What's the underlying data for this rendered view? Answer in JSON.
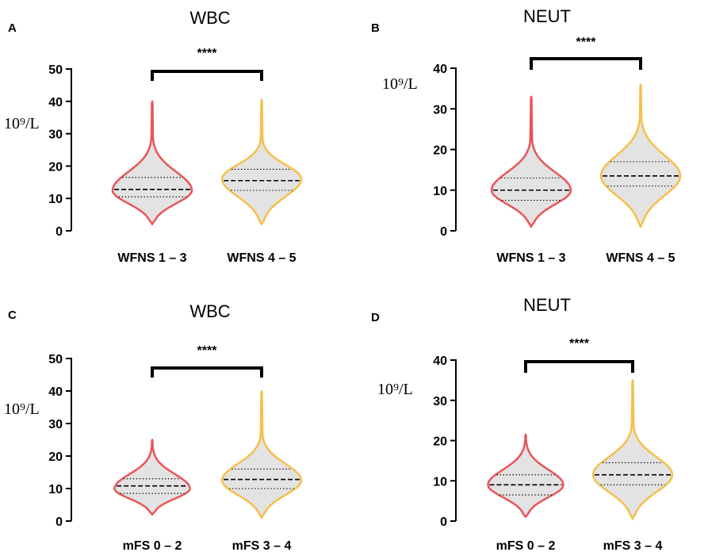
{
  "chart_data": [
    {
      "panel": "A",
      "title": "WBC",
      "type": "violin",
      "unit": "10⁹/L",
      "ylim": [
        0,
        50
      ],
      "yticks": [
        0,
        10,
        20,
        30,
        40,
        50
      ],
      "categories": [
        "WFNS 1 – 3",
        "WFNS 4 – 5"
      ],
      "significance": "****",
      "series": [
        {
          "name": "WFNS 1 – 3",
          "color": "#e8555a",
          "min": 2,
          "max": 40,
          "q1": 10.5,
          "median": 12.8,
          "q3": 16.5,
          "mode": 12.5,
          "width": 1.0
        },
        {
          "name": "WFNS 4 – 5",
          "color": "#f5c04a",
          "min": 2,
          "max": 40.5,
          "q1": 12.5,
          "median": 15.5,
          "q3": 19,
          "mode": 16,
          "width": 1.0
        }
      ]
    },
    {
      "panel": "B",
      "title": "NEUT",
      "type": "violin",
      "unit": "10⁹/L",
      "ylim": [
        0,
        40
      ],
      "yticks": [
        0,
        10,
        20,
        30,
        40
      ],
      "categories": [
        "WFNS 1 – 3",
        "WFNS 4 – 5"
      ],
      "significance": "****",
      "series": [
        {
          "name": "WFNS 1 – 3",
          "color": "#e8555a",
          "min": 1,
          "max": 33,
          "q1": 7.5,
          "median": 10,
          "q3": 13,
          "mode": 10,
          "width": 1.0
        },
        {
          "name": "WFNS 4 – 5",
          "color": "#f5c04a",
          "min": 1,
          "max": 36,
          "q1": 11,
          "median": 13.5,
          "q3": 17,
          "mode": 13.5,
          "width": 1.0
        }
      ]
    },
    {
      "panel": "C",
      "title": "WBC",
      "type": "violin",
      "unit": "10⁹/L",
      "ylim": [
        0,
        50
      ],
      "yticks": [
        0,
        10,
        20,
        30,
        40,
        50
      ],
      "categories": [
        "mFS 0 – 2",
        "mFS 3 – 4"
      ],
      "significance": "****",
      "series": [
        {
          "name": "mFS 0 – 2",
          "color": "#e8555a",
          "min": 2,
          "max": 25,
          "q1": 8.5,
          "median": 10.8,
          "q3": 13,
          "mode": 10,
          "width": 0.95
        },
        {
          "name": "mFS 3 – 4",
          "color": "#f5c04a",
          "min": 1,
          "max": 40,
          "q1": 10,
          "median": 12.8,
          "q3": 16,
          "mode": 12.5,
          "width": 1.0
        }
      ]
    },
    {
      "panel": "D",
      "title": "NEUT",
      "type": "violin",
      "unit": "10⁹/L",
      "ylim": [
        0,
        40
      ],
      "yticks": [
        0,
        10,
        20,
        30,
        40
      ],
      "categories": [
        "mFS 0 – 2",
        "mFS 3 – 4"
      ],
      "significance": "****",
      "series": [
        {
          "name": "mFS 0 – 2",
          "color": "#e8555a",
          "min": 1,
          "max": 21.5,
          "q1": 6.5,
          "median": 9,
          "q3": 11.5,
          "mode": 9,
          "width": 0.95
        },
        {
          "name": "mFS 3 – 4",
          "color": "#f5c04a",
          "min": 0.5,
          "max": 35,
          "q1": 9,
          "median": 11.5,
          "q3": 14.5,
          "mode": 11.5,
          "width": 1.0
        }
      ]
    }
  ]
}
